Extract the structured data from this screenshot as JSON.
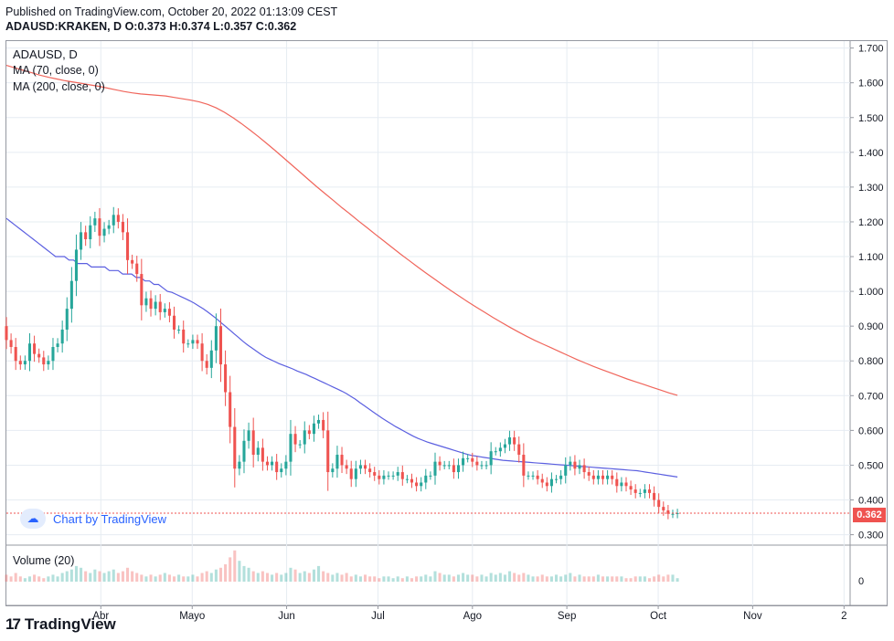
{
  "header": {
    "published": "Published on TradingView.com, October 20, 2022 01:13:09 CEST",
    "symbol": "ADAUSD:KRAKEN, D",
    "ohlc": "O:0.373 H:0.374 L:0.357 C:0.362"
  },
  "legend": {
    "symbol": "ADAUSD, D",
    "ma70": "MA (70, close, 0)",
    "ma200": "MA (200, close, 0)",
    "volume": "Volume (20)"
  },
  "watermark": {
    "text": "Chart by TradingView",
    "icon": "tradingview-cloud-icon"
  },
  "footer": {
    "logo": "17",
    "brand": "TradingView"
  },
  "last_price": "0.362",
  "colors": {
    "up": "#26a69a",
    "down": "#ef5350",
    "ma70": "#5b5fe0",
    "ma200": "#f0655b",
    "grid": "#e6ecf2"
  },
  "chart_data": {
    "type": "candlestick",
    "price_axis": {
      "ticks": [
        "1.700",
        "1.600",
        "1.500",
        "1.400",
        "1.300",
        "1.200",
        "1.100",
        "1.000",
        "0.900",
        "0.800",
        "0.700",
        "0.600",
        "0.500",
        "0.400",
        "0.300"
      ],
      "ylim": [
        0.27,
        1.72
      ]
    },
    "volume_axis": {
      "ticks": [
        "0"
      ]
    },
    "x_ticks": [
      "Abr",
      "Mayo",
      "Jun",
      "Jul",
      "Ago",
      "Sep",
      "Oct",
      "Nov",
      "2"
    ],
    "x_tick_days": [
      31,
      61,
      92,
      122,
      153,
      184,
      214,
      245,
      275
    ],
    "x_range_days": [
      0,
      277
    ],
    "close": [
      0.86,
      0.84,
      0.8,
      0.79,
      0.8,
      0.85,
      0.82,
      0.81,
      0.79,
      0.8,
      0.84,
      0.85,
      0.89,
      0.95,
      1.03,
      1.12,
      1.17,
      1.15,
      1.19,
      1.21,
      1.16,
      1.18,
      1.19,
      1.22,
      1.2,
      1.17,
      1.09,
      1.08,
      1.05,
      0.96,
      0.98,
      0.95,
      0.97,
      0.94,
      0.95,
      0.93,
      0.89,
      0.89,
      0.85,
      0.85,
      0.86,
      0.85,
      0.8,
      0.78,
      0.83,
      0.9,
      0.79,
      0.71,
      0.61,
      0.49,
      0.51,
      0.57,
      0.6,
      0.53,
      0.55,
      0.51,
      0.5,
      0.51,
      0.48,
      0.49,
      0.51,
      0.59,
      0.56,
      0.56,
      0.6,
      0.59,
      0.62,
      0.63,
      0.6,
      0.48,
      0.49,
      0.53,
      0.5,
      0.49,
      0.46,
      0.49,
      0.5,
      0.49,
      0.48,
      0.47,
      0.46,
      0.47,
      0.47,
      0.47,
      0.48,
      0.46,
      0.46,
      0.45,
      0.44,
      0.45,
      0.47,
      0.47,
      0.51,
      0.5,
      0.5,
      0.5,
      0.48,
      0.5,
      0.52,
      0.52,
      0.51,
      0.5,
      0.5,
      0.5,
      0.54,
      0.54,
      0.55,
      0.56,
      0.58,
      0.56,
      0.53,
      0.47,
      0.47,
      0.47,
      0.46,
      0.45,
      0.44,
      0.46,
      0.46,
      0.47,
      0.5,
      0.51,
      0.49,
      0.5,
      0.48,
      0.47,
      0.46,
      0.47,
      0.46,
      0.47,
      0.46,
      0.44,
      0.45,
      0.44,
      0.43,
      0.42,
      0.42,
      0.43,
      0.42,
      0.4,
      0.38,
      0.37,
      0.36,
      0.36,
      0.362
    ],
    "ma70": [
      1.21,
      1.2,
      1.19,
      1.18,
      1.17,
      1.16,
      1.15,
      1.14,
      1.13,
      1.12,
      1.11,
      1.1,
      1.1,
      1.1,
      1.09,
      1.09,
      1.08,
      1.08,
      1.08,
      1.07,
      1.07,
      1.07,
      1.07,
      1.06,
      1.06,
      1.06,
      1.05,
      1.05,
      1.05,
      1.04,
      1.04,
      1.03,
      1.03,
      1.02,
      1.02,
      1.01,
      1.0,
      0.997,
      0.991,
      0.985,
      0.979,
      0.973,
      0.966,
      0.958,
      0.95,
      0.941,
      0.931,
      0.921,
      0.91,
      0.899,
      0.888,
      0.877,
      0.866,
      0.855,
      0.845,
      0.836,
      0.827,
      0.818,
      0.81,
      0.804,
      0.798,
      0.792,
      0.787,
      0.782,
      0.777,
      0.771,
      0.766,
      0.761,
      0.755,
      0.749,
      0.743,
      0.737,
      0.731,
      0.725,
      0.719,
      0.713,
      0.706,
      0.698,
      0.69,
      0.68,
      0.671,
      0.662,
      0.653,
      0.644,
      0.635,
      0.627,
      0.619,
      0.611,
      0.604,
      0.597,
      0.59,
      0.583,
      0.577,
      0.572,
      0.567,
      0.563,
      0.559,
      0.555,
      0.551,
      0.547,
      0.543,
      0.539,
      0.535,
      0.531,
      0.528,
      0.526,
      0.524,
      0.522,
      0.52,
      0.518,
      0.516,
      0.514,
      0.513,
      0.512,
      0.511,
      0.51,
      0.509,
      0.508,
      0.507,
      0.506,
      0.505,
      0.504,
      0.503,
      0.502,
      0.501,
      0.5,
      0.499,
      0.498,
      0.497,
      0.496,
      0.495,
      0.494,
      0.493,
      0.492,
      0.491,
      0.49,
      0.489,
      0.488,
      0.487,
      0.486,
      0.485,
      0.484,
      0.482,
      0.48,
      0.478,
      0.476,
      0.474,
      0.472,
      0.47,
      0.468,
      0.466
    ],
    "ma200": [
      1.65,
      1.643,
      1.636,
      1.629,
      1.622,
      1.616,
      1.611,
      1.606,
      1.602,
      1.598,
      1.594,
      1.59,
      1.585,
      1.58,
      1.575,
      1.571,
      1.568,
      1.566,
      1.564,
      1.562,
      1.558,
      1.554,
      1.55,
      1.545,
      1.538,
      1.528,
      1.515,
      1.5,
      1.483,
      1.465,
      1.446,
      1.426,
      1.406,
      1.385,
      1.364,
      1.343,
      1.322,
      1.301,
      1.281,
      1.261,
      1.241,
      1.222,
      1.202,
      1.183,
      1.164,
      1.145,
      1.126,
      1.107,
      1.089,
      1.071,
      1.053,
      1.036,
      1.019,
      1.002,
      0.986,
      0.97,
      0.955,
      0.94,
      0.925,
      0.911,
      0.897,
      0.884,
      0.871,
      0.859,
      0.848,
      0.837,
      0.826,
      0.815,
      0.804,
      0.794,
      0.784,
      0.775,
      0.766,
      0.757,
      0.748,
      0.74,
      0.732,
      0.724,
      0.716,
      0.708,
      0.701
    ],
    "volume": [
      4,
      3,
      5,
      3,
      2,
      3,
      4,
      3,
      2,
      3,
      4,
      3,
      5,
      6,
      7,
      9,
      8,
      6,
      5,
      7,
      6,
      5,
      6,
      7,
      5,
      6,
      8,
      6,
      5,
      4,
      3,
      4,
      3,
      4,
      5,
      4,
      3,
      4,
      3,
      3,
      4,
      3,
      5,
      6,
      5,
      7,
      8,
      10,
      14,
      18,
      12,
      9,
      8,
      6,
      5,
      6,
      5,
      4,
      5,
      4,
      5,
      8,
      7,
      5,
      6,
      5,
      7,
      9,
      6,
      5,
      4,
      5,
      4,
      5,
      3,
      4,
      3,
      4,
      3,
      3,
      2,
      3,
      3,
      2,
      3,
      2,
      3,
      2,
      3,
      3,
      4,
      3,
      6,
      5,
      4,
      4,
      3,
      4,
      5,
      4,
      4,
      3,
      4,
      3,
      5,
      4,
      5,
      4,
      6,
      5,
      4,
      5,
      4,
      3,
      3,
      4,
      3,
      3,
      4,
      3,
      4,
      5,
      3,
      4,
      3,
      3,
      3,
      4,
      3,
      3,
      3,
      3,
      3,
      2,
      2,
      3,
      3,
      3,
      2,
      3,
      4,
      3,
      4,
      4,
      2
    ],
    "last": 0.362
  }
}
